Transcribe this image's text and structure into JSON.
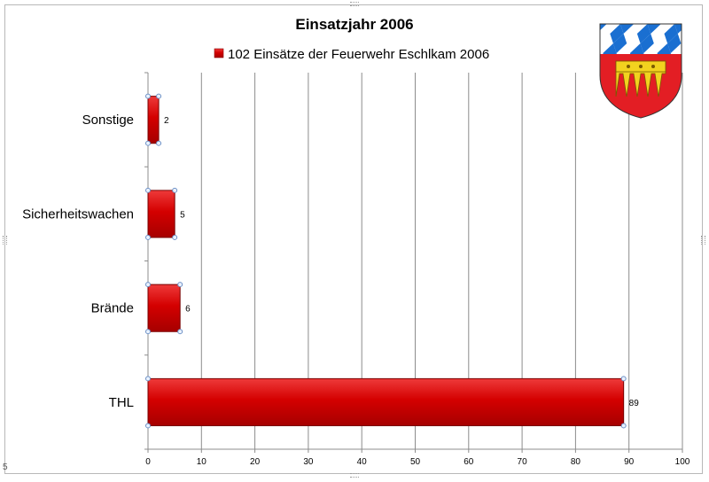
{
  "chart_data": {
    "type": "bar",
    "orientation": "horizontal",
    "title": "Einsatzjahr 2006",
    "categories": [
      "Sonstige",
      "Sicherheitswachen",
      "Brände",
      "THL"
    ],
    "series": [
      {
        "name": "102 Einsätze der Feuerwehr Eschlkam 2006",
        "values": [
          2,
          5,
          6,
          89
        ],
        "color": "#d40000"
      }
    ],
    "data_labels": [
      "2",
      "5",
      "6",
      "89"
    ],
    "xlim": [
      0,
      100
    ],
    "x_ticks": [
      0,
      10,
      20,
      30,
      40,
      50,
      60,
      70,
      80,
      90,
      100
    ],
    "grid": true,
    "legend_position": "top"
  },
  "corner_label": "5",
  "emblem": {
    "icon": "coat-of-arms-icon",
    "colors": {
      "blue": "#1a6fd1",
      "red": "#e31e24",
      "gold": "#f2d21f",
      "white": "#ffffff"
    }
  }
}
